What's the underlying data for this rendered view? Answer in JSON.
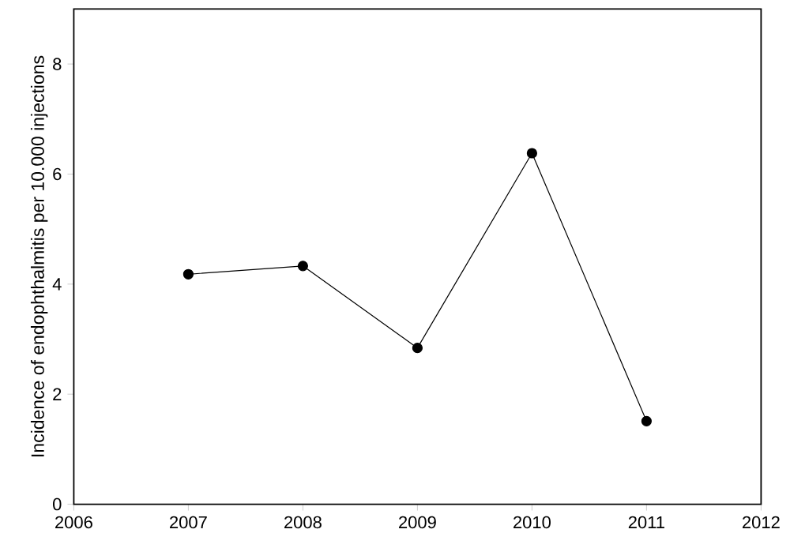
{
  "chart_data": {
    "type": "line",
    "ylabel": "Incidence of endophthalmitis per 10.000 injections",
    "x": [
      2007,
      2008,
      2009,
      2010,
      2011
    ],
    "values": [
      4.18,
      4.33,
      2.84,
      6.38,
      1.51
    ],
    "color": "#000000",
    "marker": "circle",
    "line_style": "solid",
    "xlim": [
      2006,
      2012
    ],
    "xticks": [
      2006,
      2007,
      2008,
      2009,
      2010,
      2011,
      2012
    ],
    "ylim": [
      0,
      9
    ],
    "yticks": [
      0,
      2,
      4,
      6,
      8
    ],
    "grid": false
  }
}
